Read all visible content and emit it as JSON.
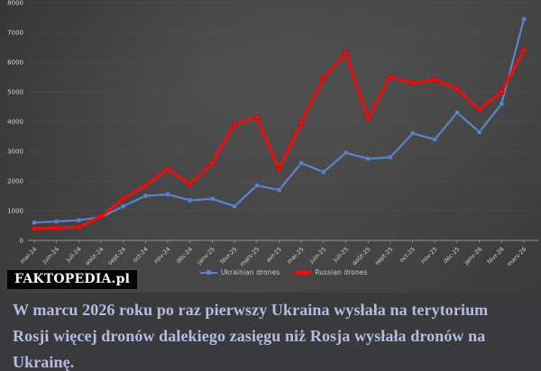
{
  "branding": {
    "watermark": "FAKTOPEDIA.pl"
  },
  "caption": {
    "text": "W marcu 2026 roku po raz pierwszy Ukraina wysłała na terytorium Rosji więcej dronów dalekiego zasięgu niż Rosja wysłała dronów na Ukrainę.",
    "lines": [
      "W marcu 2026 roku po raz pierwszy Ukraina wysłała na terytorium",
      "Rosji więcej dronów dalekiego zasięgu niż Rosja wysłała dronów na",
      "Ukrainę."
    ]
  },
  "chart_data": {
    "type": "line",
    "title": "",
    "xlabel": "",
    "ylabel": "",
    "ylim": [
      0,
      8000
    ],
    "ytick_step": 1000,
    "grid": true,
    "legend_position": "bottom",
    "categories": [
      "mai-24",
      "juin-24",
      "juil-24",
      "août-24",
      "sept-24",
      "oct-24",
      "nov-24",
      "déc-24",
      "janv-25",
      "févr-25",
      "mars-25",
      "avr-25",
      "mai-25",
      "juin-25",
      "juil-25",
      "août-25",
      "sept-25",
      "oct-25",
      "nov-25",
      "déc-25",
      "janv-26",
      "févr-26",
      "mars-26"
    ],
    "series": [
      {
        "name": "Ukrainian drones",
        "color": "#5b84c9",
        "values": [
          600,
          640,
          680,
          780,
          1150,
          1500,
          1550,
          1350,
          1400,
          1150,
          1850,
          1700,
          2600,
          2300,
          2950,
          2750,
          2800,
          3600,
          3400,
          4300,
          3650,
          4600,
          7450
        ]
      },
      {
        "name": "Russian drones",
        "color": "#e11212",
        "values": [
          400,
          420,
          450,
          800,
          1400,
          1850,
          2400,
          1900,
          2600,
          3900,
          4150,
          2400,
          3950,
          5450,
          6300,
          4100,
          5500,
          5300,
          5400,
          5100,
          4400,
          5000,
          6400
        ]
      }
    ]
  },
  "colors": {
    "chart_bg": "#454545",
    "caption_bg": "#3a3a3d",
    "caption_text": "#b4bce2",
    "axis_text": "#d6d6d6",
    "gridline": "#606060",
    "watermark_bg": "#040404",
    "watermark_text": "#f6f6f6"
  }
}
